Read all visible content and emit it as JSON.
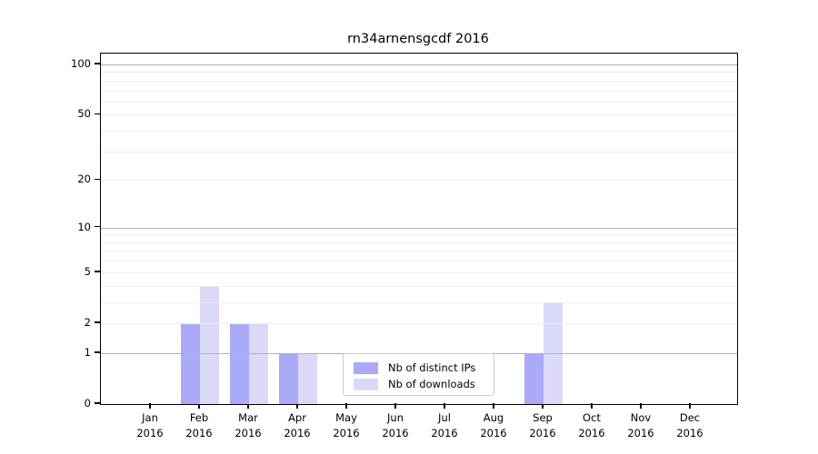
{
  "title": "rn34arnensgcdf 2016",
  "colors": {
    "bar_distinct_ips": "#aaaaf8",
    "bar_downloads": "#dadaf8",
    "grid_major": "#b0b0b0",
    "grid_minor": "#ededed",
    "spine": "#000000",
    "legend_border": "#cccccc"
  },
  "chart_data": {
    "type": "bar",
    "title": "rn34arnensgcdf 2016",
    "yscale": "log1p",
    "grid": true,
    "legend_position": "lower center",
    "categories": [
      {
        "month": "Jan",
        "year": "2016"
      },
      {
        "month": "Feb",
        "year": "2016"
      },
      {
        "month": "Mar",
        "year": "2016"
      },
      {
        "month": "Apr",
        "year": "2016"
      },
      {
        "month": "May",
        "year": "2016"
      },
      {
        "month": "Jun",
        "year": "2016"
      },
      {
        "month": "Jul",
        "year": "2016"
      },
      {
        "month": "Aug",
        "year": "2016"
      },
      {
        "month": "Sep",
        "year": "2016"
      },
      {
        "month": "Oct",
        "year": "2016"
      },
      {
        "month": "Nov",
        "year": "2016"
      },
      {
        "month": "Dec",
        "year": "2016"
      }
    ],
    "series": [
      {
        "name": "Nb of distinct IPs",
        "color": "#aaaaf8",
        "values": [
          0,
          2,
          2,
          1,
          0,
          0,
          0,
          0,
          1,
          0,
          0,
          0
        ]
      },
      {
        "name": "Nb of downloads",
        "color": "#dadaf8",
        "values": [
          0,
          4,
          2,
          1,
          0,
          0,
          0,
          0,
          3,
          0,
          0,
          0
        ]
      }
    ],
    "yticks": [
      0,
      1,
      2,
      5,
      10,
      20,
      50,
      100
    ],
    "major_gridlines": [
      1,
      10,
      100
    ],
    "minor_gridlines": [
      2,
      3,
      4,
      5,
      6,
      7,
      8,
      9,
      20,
      30,
      40,
      50,
      60,
      70,
      80,
      90
    ],
    "ylim": [
      0,
      117
    ],
    "xlabel": "",
    "ylabel": ""
  }
}
